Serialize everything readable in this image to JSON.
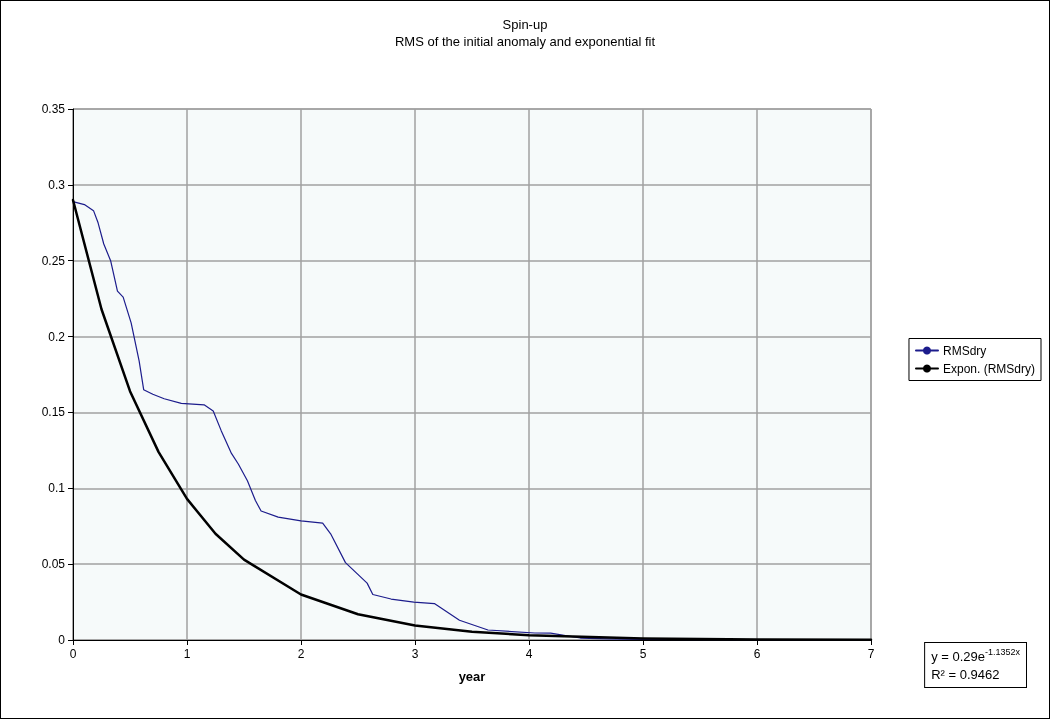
{
  "chart_data": {
    "type": "line",
    "title": "Spin-up",
    "subtitle": "RMS of the initial anomaly and exponential fit",
    "xlabel": "year",
    "xlim": [
      0,
      7
    ],
    "xticks": [
      0,
      1,
      2,
      3,
      4,
      5,
      6,
      7
    ],
    "ylim": [
      0,
      0.35
    ],
    "yticks": [
      0,
      0.05,
      0.1,
      0.15,
      0.2,
      0.25,
      0.3,
      0.35
    ],
    "grid": true,
    "legend": "right",
    "marker": "none",
    "line_style": "solid",
    "annotations": [
      "y = 0.29e$^{-1.1352x}$",
      "R² = 0.9462"
    ],
    "series": [
      {
        "name": "RMSdry",
        "color": "#1c1c8c",
        "x": [
          0,
          0.1,
          0.18,
          0.22,
          0.27,
          0.33,
          0.39,
          0.44,
          0.51,
          0.58,
          0.62,
          0.7,
          0.8,
          0.95,
          1.15,
          1.23,
          1.3,
          1.39,
          1.45,
          1.53,
          1.6,
          1.65,
          1.8,
          2.0,
          2.19,
          2.26,
          2.39,
          2.58,
          2.63,
          2.79,
          2.99,
          3.17,
          3.39,
          3.64,
          4.05,
          4.19,
          4.45,
          4.7,
          5.0,
          6.0,
          7.0
        ],
        "values": [
          0.289,
          0.287,
          0.283,
          0.275,
          0.261,
          0.25,
          0.23,
          0.226,
          0.209,
          0.184,
          0.165,
          0.162,
          0.159,
          0.156,
          0.155,
          0.151,
          0.138,
          0.123,
          0.116,
          0.105,
          0.092,
          0.085,
          0.081,
          0.0785,
          0.077,
          0.07,
          0.051,
          0.0375,
          0.03,
          0.027,
          0.025,
          0.024,
          0.013,
          0.0066,
          0.0046,
          0.0045,
          0.0013,
          0.0008,
          0.0004,
          0.0002,
          0.0001
        ]
      },
      {
        "name": "Expon. (RMSdry)",
        "color": "#000000",
        "x": [
          0,
          0.25,
          0.5,
          0.75,
          1,
          1.25,
          1.5,
          2,
          2.5,
          3,
          3.5,
          4,
          5,
          6,
          7
        ],
        "values": [
          0.29,
          0.218,
          0.164,
          0.124,
          0.093,
          0.07,
          0.053,
          0.03,
          0.017,
          0.0096,
          0.0055,
          0.0031,
          0.001,
          0.0003,
          0.0001
        ]
      }
    ]
  }
}
